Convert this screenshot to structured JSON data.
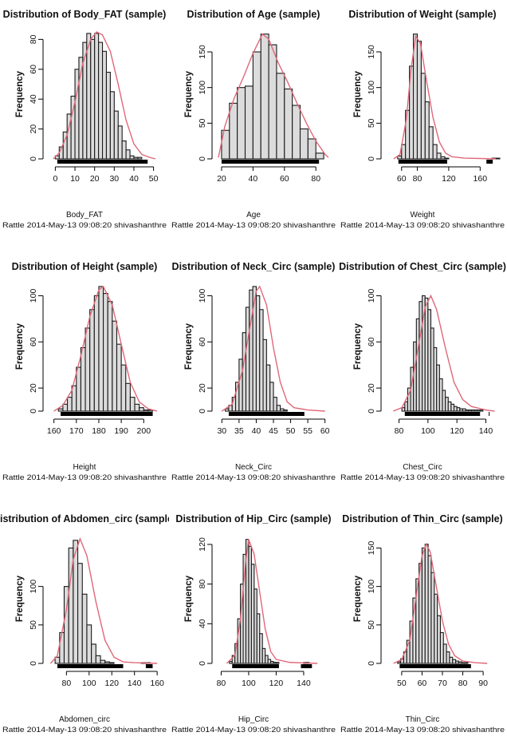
{
  "chart_data": [
    {
      "type": "bar",
      "title": "Distribution of Body_FAT (sample)",
      "xlabel": "Body_FAT",
      "ylabel": "Frequency",
      "footer": "Rattle 2014-May-13 09:08:20 shivashanthre",
      "xlim": [
        -3,
        53
      ],
      "ylim": [
        0,
        85
      ],
      "xticks": [
        0,
        10,
        20,
        30,
        40,
        50
      ],
      "yticks": [
        0,
        20,
        40,
        60,
        80
      ],
      "bin_start": 0,
      "bin_width": 2,
      "values": [
        2,
        8,
        18,
        30,
        42,
        60,
        68,
        78,
        84,
        80,
        84,
        78,
        72,
        58,
        45,
        32,
        22,
        12,
        6,
        2,
        1,
        1
      ],
      "density": [
        [
          -1,
          0
        ],
        [
          2,
          4
        ],
        [
          6,
          16
        ],
        [
          10,
          38
        ],
        [
          14,
          64
        ],
        [
          18,
          80
        ],
        [
          21,
          85
        ],
        [
          24,
          83
        ],
        [
          28,
          72
        ],
        [
          32,
          50
        ],
        [
          36,
          26
        ],
        [
          40,
          10
        ],
        [
          44,
          3
        ],
        [
          48,
          1
        ],
        [
          51,
          0
        ]
      ],
      "rug": [
        [
          1,
          47
        ]
      ]
    },
    {
      "type": "bar",
      "title": "Distribution of Age (sample)",
      "xlabel": "Age",
      "ylabel": "Frequency",
      "footer": "Rattle 2014-May-13 09:08:20 shivashanthre",
      "xlim": [
        18,
        88
      ],
      "ylim": [
        0,
        178
      ],
      "xticks": [
        20,
        40,
        60,
        80
      ],
      "yticks": [
        0,
        50,
        100,
        150
      ],
      "bin_start": 20,
      "bin_width": 5,
      "values": [
        40,
        78,
        100,
        102,
        150,
        175,
        160,
        120,
        98,
        75,
        42,
        28,
        8
      ],
      "density": [
        [
          18,
          2
        ],
        [
          22,
          45
        ],
        [
          28,
          85
        ],
        [
          34,
          115
        ],
        [
          40,
          148
        ],
        [
          46,
          175
        ],
        [
          50,
          168
        ],
        [
          56,
          135
        ],
        [
          62,
          108
        ],
        [
          68,
          78
        ],
        [
          74,
          50
        ],
        [
          80,
          25
        ],
        [
          86,
          6
        ],
        [
          88,
          2
        ]
      ],
      "rug": [
        [
          20,
          82
        ]
      ]
    },
    {
      "type": "bar",
      "title": "Distribution of Weight (sample)",
      "xlabel": "Weight",
      "ylabel": "Frequency",
      "footer": "Rattle 2014-May-13 09:08:20 shivashanthre",
      "xlim": [
        42,
        182
      ],
      "ylim": [
        0,
        178
      ],
      "xticks": [
        60,
        80,
        120,
        160
      ],
      "yticks": [
        0,
        50,
        100,
        150
      ],
      "bin_start": 55,
      "bin_width": 5,
      "values": [
        4,
        20,
        68,
        130,
        175,
        165,
        120,
        80,
        45,
        20,
        8,
        3,
        1,
        0,
        0,
        0,
        0,
        0,
        0,
        0,
        0,
        0,
        0,
        0,
        1,
        1
      ],
      "density": [
        [
          50,
          0
        ],
        [
          58,
          6
        ],
        [
          66,
          55
        ],
        [
          72,
          125
        ],
        [
          78,
          172
        ],
        [
          84,
          162
        ],
        [
          92,
          108
        ],
        [
          100,
          58
        ],
        [
          108,
          24
        ],
        [
          116,
          8
        ],
        [
          124,
          3
        ],
        [
          140,
          1
        ],
        [
          180,
          0
        ]
      ],
      "rug": [
        [
          56,
          118
        ],
        [
          168,
          176
        ]
      ]
    },
    {
      "type": "bar",
      "title": "Distribution of Height (sample)",
      "xlabel": "Height",
      "ylabel": "Frequency",
      "footer": "Rattle 2014-May-13 09:08:20 shivashanthre",
      "xlim": [
        158,
        207
      ],
      "ylim": [
        0,
        110
      ],
      "xticks": [
        160,
        170,
        180,
        190,
        200
      ],
      "yticks": [
        0,
        20,
        60,
        100
      ],
      "bin_start": 162,
      "bin_width": 2,
      "values": [
        2,
        6,
        12,
        22,
        38,
        55,
        72,
        88,
        100,
        108,
        102,
        95,
        78,
        58,
        40,
        24,
        12,
        6,
        3,
        1,
        1
      ],
      "density": [
        [
          160,
          0
        ],
        [
          164,
          5
        ],
        [
          168,
          18
        ],
        [
          172,
          48
        ],
        [
          176,
          82
        ],
        [
          180,
          105
        ],
        [
          182,
          108
        ],
        [
          186,
          92
        ],
        [
          190,
          58
        ],
        [
          194,
          25
        ],
        [
          198,
          8
        ],
        [
          202,
          2
        ],
        [
          206,
          0
        ]
      ],
      "rug": [
        [
          163,
          204
        ]
      ]
    },
    {
      "type": "bar",
      "title": "Distribution of Neck_Circ (sample)",
      "xlabel": "Neck_Circ",
      "ylabel": "Frequency",
      "footer": "Rattle 2014-May-13 09:08:20 shivashanthre",
      "xlim": [
        29,
        61
      ],
      "ylim": [
        0,
        110
      ],
      "xticks": [
        30,
        35,
        40,
        45,
        50,
        55,
        60
      ],
      "yticks": [
        0,
        20,
        60,
        100
      ],
      "bin_start": 31,
      "bin_width": 1,
      "values": [
        2,
        5,
        12,
        25,
        45,
        68,
        90,
        105,
        108,
        100,
        88,
        62,
        40,
        25,
        12,
        5,
        2,
        1
      ],
      "density": [
        [
          30,
          0
        ],
        [
          33,
          6
        ],
        [
          36,
          35
        ],
        [
          38,
          70
        ],
        [
          40,
          104
        ],
        [
          41,
          108
        ],
        [
          43,
          92
        ],
        [
          45,
          55
        ],
        [
          47,
          25
        ],
        [
          49,
          8
        ],
        [
          51,
          3
        ],
        [
          55,
          1
        ],
        [
          60,
          0
        ]
      ],
      "rug": [
        [
          32,
          54
        ]
      ]
    },
    {
      "type": "bar",
      "title": "Distribution of Chest_Circ (sample)",
      "xlabel": "Chest_Circ",
      "ylabel": "Frequency",
      "footer": "Rattle 2014-May-13 09:08:20 shivashanthre",
      "xlim": [
        72,
        148
      ],
      "ylim": [
        0,
        110
      ],
      "xticks": [
        80,
        100,
        120,
        140
      ],
      "yticks": [
        0,
        20,
        60,
        100
      ],
      "bin_start": 82,
      "bin_width": 2,
      "values": [
        3,
        8,
        20,
        38,
        60,
        80,
        95,
        100,
        98,
        88,
        72,
        55,
        40,
        28,
        18,
        12,
        8,
        6,
        4,
        3,
        2,
        2,
        1,
        1,
        1,
        1,
        1,
        1
      ],
      "density": [
        [
          76,
          0
        ],
        [
          82,
          3
        ],
        [
          88,
          18
        ],
        [
          94,
          60
        ],
        [
          98,
          90
        ],
        [
          102,
          100
        ],
        [
          106,
          88
        ],
        [
          112,
          55
        ],
        [
          118,
          25
        ],
        [
          124,
          10
        ],
        [
          130,
          4
        ],
        [
          140,
          1
        ],
        [
          146,
          0
        ]
      ],
      "rug": [
        [
          84,
          136
        ],
        [
          142,
          142
        ]
      ]
    },
    {
      "type": "bar",
      "title": "Distribution of Abdomen_circ (sample)",
      "xlabel": "Abdomen_circ",
      "ylabel": "Frequency",
      "footer": "Rattle 2014-May-13 09:08:20 shivashanthre",
      "xlim": [
        65,
        162
      ],
      "ylim": [
        0,
        165
      ],
      "xticks": [
        80,
        100,
        120,
        140,
        160
      ],
      "yticks": [
        0,
        50,
        100
      ],
      "bin_start": 70,
      "bin_width": 4,
      "values": [
        8,
        40,
        100,
        150,
        160,
        130,
        90,
        50,
        25,
        10,
        4,
        2,
        1,
        0,
        0,
        0,
        0,
        0,
        0,
        1,
        1
      ],
      "density": [
        [
          66,
          0
        ],
        [
          72,
          10
        ],
        [
          80,
          70
        ],
        [
          86,
          135
        ],
        [
          92,
          162
        ],
        [
          98,
          140
        ],
        [
          106,
          80
        ],
        [
          114,
          30
        ],
        [
          122,
          8
        ],
        [
          130,
          2
        ],
        [
          140,
          1
        ],
        [
          160,
          0
        ]
      ],
      "rug": [
        [
          72,
          130
        ],
        [
          150,
          156
        ]
      ]
    },
    {
      "type": "bar",
      "title": "Distribution of Hip_Circ (sample)",
      "xlabel": "Hip_Circ",
      "ylabel": "Frequency",
      "footer": "Rattle 2014-May-13 09:08:20 shivashanthre",
      "xlim": [
        78,
        158
      ],
      "ylim": [
        0,
        128
      ],
      "xticks": [
        80,
        100,
        120,
        140
      ],
      "yticks": [
        0,
        40,
        80,
        120
      ],
      "bin_start": 86,
      "bin_width": 2,
      "values": [
        2,
        8,
        20,
        45,
        80,
        110,
        125,
        118,
        100,
        75,
        50,
        30,
        15,
        8,
        4,
        2,
        1,
        1,
        0,
        0,
        0,
        0,
        0,
        0,
        0,
        0,
        0,
        1,
        1
      ],
      "density": [
        [
          84,
          0
        ],
        [
          90,
          8
        ],
        [
          94,
          45
        ],
        [
          98,
          105
        ],
        [
          100,
          125
        ],
        [
          104,
          110
        ],
        [
          108,
          72
        ],
        [
          112,
          35
        ],
        [
          116,
          12
        ],
        [
          120,
          4
        ],
        [
          130,
          1
        ],
        [
          150,
          0
        ]
      ],
      "rug": [
        [
          88,
          122
        ],
        [
          138,
          146
        ]
      ]
    },
    {
      "type": "bar",
      "title": "Distribution of Thin_Circ (sample)",
      "xlabel": "Thin_Circ",
      "ylabel": "Frequency",
      "footer": "Rattle 2014-May-13 09:08:20 shivashanthre",
      "xlim": [
        43,
        97
      ],
      "ylim": [
        0,
        165
      ],
      "xticks": [
        50,
        60,
        70,
        80,
        90
      ],
      "yticks": [
        0,
        50,
        100,
        150
      ],
      "bin_start": 48,
      "bin_width": 1.5,
      "values": [
        2,
        6,
        15,
        30,
        55,
        85,
        110,
        130,
        150,
        155,
        140,
        118,
        90,
        62,
        40,
        25,
        15,
        8,
        5,
        3,
        2,
        1,
        1
      ],
      "density": [
        [
          46,
          0
        ],
        [
          50,
          5
        ],
        [
          54,
          30
        ],
        [
          57,
          85
        ],
        [
          60,
          140
        ],
        [
          62,
          155
        ],
        [
          64,
          145
        ],
        [
          67,
          100
        ],
        [
          70,
          55
        ],
        [
          73,
          25
        ],
        [
          76,
          10
        ],
        [
          80,
          3
        ],
        [
          86,
          1
        ],
        [
          92,
          0
        ]
      ],
      "rug": [
        [
          49,
          84
        ]
      ]
    }
  ]
}
